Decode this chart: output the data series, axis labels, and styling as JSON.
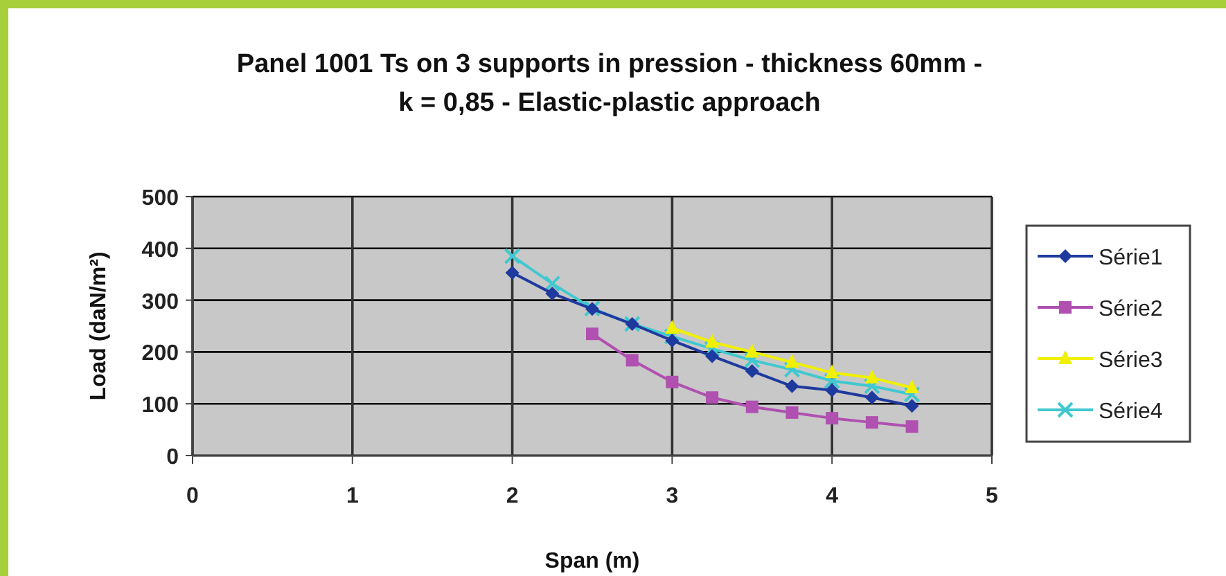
{
  "chart_data": {
    "type": "line",
    "title": "Panel 1001 Ts on 3 supports in pression - thickness 60mm -\nk = 0,85 - Elastic-plastic approach",
    "xlabel": "Span (m)",
    "ylabel": "Load (daN/m²)",
    "x": [
      2,
      2.25,
      2.5,
      2.75,
      3,
      3.25,
      3.5,
      3.75,
      4,
      4.25,
      4.5
    ],
    "xlim": [
      0,
      5
    ],
    "xticks": [
      0,
      1,
      2,
      3,
      4,
      5
    ],
    "ylim": [
      0,
      500
    ],
    "yticks": [
      0,
      100,
      200,
      300,
      400,
      500
    ],
    "grid": true,
    "legend": "right",
    "series": [
      {
        "name": "Série1",
        "color": "#1f3a9e",
        "marker": "diamond",
        "values": [
          353,
          313,
          283,
          254,
          222,
          192,
          163,
          134,
          126,
          112,
          96
        ]
      },
      {
        "name": "Série2",
        "color": "#b050b0",
        "marker": "square",
        "values": [
          null,
          null,
          235,
          184,
          142,
          112,
          94,
          83,
          72,
          64,
          56
        ]
      },
      {
        "name": "Série3",
        "color": "#f0f000",
        "marker": "triangle",
        "values": [
          null,
          null,
          null,
          null,
          246,
          219,
          200,
          180,
          160,
          150,
          131
        ]
      },
      {
        "name": "Série4",
        "color": "#40c8d0",
        "marker": "cross",
        "values": [
          385,
          332,
          284,
          254,
          230,
          206,
          184,
          166,
          144,
          134,
          118
        ]
      }
    ]
  }
}
